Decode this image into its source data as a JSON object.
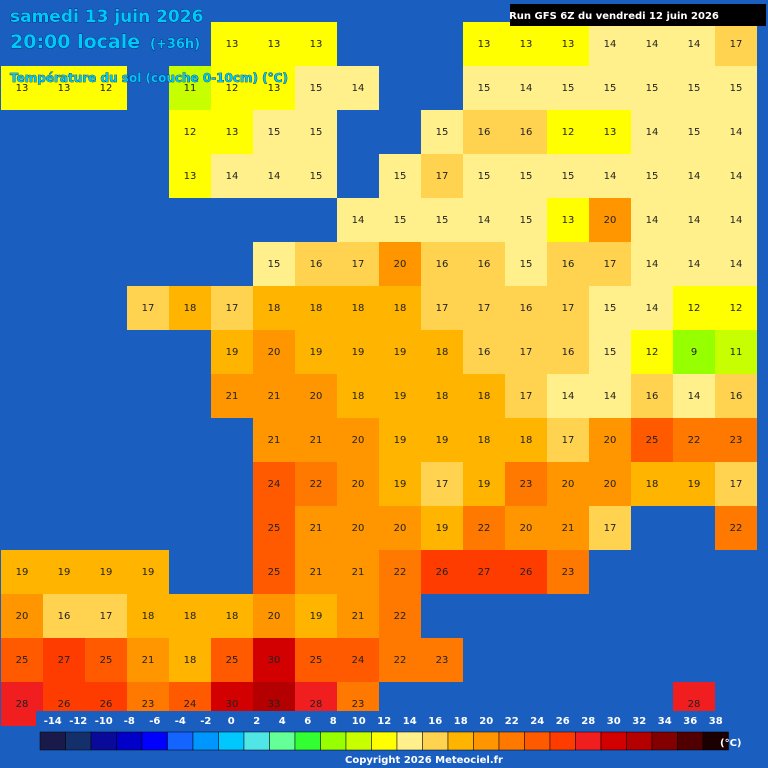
{
  "header": {
    "date": "samedi 13 juin 2026",
    "time": "20:00 locale",
    "lead": "(+36h)",
    "variable": "Température du sol (couche 0-10cm) (°C)",
    "run": "Run GFS 6Z du vendredi 12 juin 2026"
  },
  "grid": {
    "rows": [
      [
        null,
        null,
        null,
        null,
        null,
        13,
        13,
        13,
        null,
        null,
        null,
        13,
        13,
        13,
        14,
        14,
        14,
        17
      ],
      [
        13,
        13,
        12,
        null,
        11,
        12,
        13,
        15,
        14,
        null,
        null,
        15,
        14,
        15,
        15,
        15,
        15,
        15
      ],
      [
        null,
        null,
        null,
        null,
        12,
        13,
        15,
        15,
        null,
        null,
        15,
        16,
        16,
        12,
        13,
        14,
        15,
        14
      ],
      [
        null,
        null,
        null,
        null,
        13,
        14,
        14,
        15,
        null,
        15,
        17,
        15,
        15,
        15,
        14,
        15,
        14,
        14
      ],
      [
        null,
        null,
        null,
        null,
        null,
        null,
        null,
        null,
        14,
        15,
        15,
        14,
        15,
        13,
        20,
        14,
        14,
        14
      ],
      [
        null,
        null,
        null,
        null,
        null,
        null,
        15,
        16,
        17,
        20,
        16,
        16,
        15,
        16,
        17,
        14,
        14,
        14
      ],
      [
        null,
        null,
        null,
        17,
        18,
        17,
        18,
        18,
        18,
        18,
        17,
        17,
        16,
        17,
        15,
        14,
        12,
        12
      ],
      [
        null,
        null,
        null,
        null,
        null,
        19,
        20,
        19,
        19,
        19,
        18,
        16,
        17,
        16,
        15,
        12,
        9,
        11
      ],
      [
        null,
        null,
        null,
        null,
        null,
        21,
        21,
        20,
        18,
        19,
        18,
        18,
        17,
        14,
        14,
        16,
        14,
        16
      ],
      [
        null,
        null,
        null,
        null,
        null,
        null,
        21,
        21,
        20,
        19,
        19,
        18,
        18,
        17,
        20,
        25,
        22,
        23
      ],
      [
        null,
        null,
        null,
        null,
        null,
        null,
        24,
        22,
        20,
        19,
        17,
        19,
        23,
        20,
        20,
        18,
        19,
        17
      ],
      [
        null,
        null,
        null,
        null,
        null,
        null,
        25,
        21,
        20,
        20,
        19,
        22,
        20,
        21,
        17,
        null,
        null,
        22
      ],
      [
        19,
        19,
        19,
        19,
        null,
        null,
        25,
        21,
        21,
        22,
        26,
        27,
        26,
        23,
        null,
        null,
        null,
        null
      ],
      [
        20,
        16,
        17,
        18,
        18,
        18,
        20,
        19,
        21,
        22,
        null,
        null,
        null,
        null,
        null,
        null,
        null,
        null
      ],
      [
        25,
        27,
        25,
        21,
        18,
        25,
        30,
        25,
        24,
        22,
        23,
        null,
        null,
        null,
        null,
        null,
        null,
        null
      ],
      [
        28,
        26,
        26,
        23,
        24,
        30,
        33,
        28,
        23,
        null,
        null,
        null,
        null,
        null,
        null,
        null,
        28,
        null
      ]
    ]
  },
  "legend": {
    "unit": "(°C)",
    "values": [
      -14,
      -12,
      -10,
      -8,
      -6,
      -4,
      -2,
      0,
      2,
      4,
      6,
      8,
      10,
      12,
      14,
      16,
      18,
      20,
      22,
      24,
      26,
      28,
      30,
      32,
      34,
      36,
      38
    ],
    "colors": [
      "#1a1a4a",
      "#14306a",
      "#0a0a9a",
      "#0000c8",
      "#0000ff",
      "#1464ff",
      "#0096ff",
      "#00c8ff",
      "#50e6e6",
      "#64ff96",
      "#32ff32",
      "#96ff00",
      "#c8ff00",
      "#ffff00",
      "#fff08c",
      "#ffd250",
      "#ffb400",
      "#ff9600",
      "#ff7800",
      "#ff5a00",
      "#ff3c00",
      "#f01e1e",
      "#d20000",
      "#b40000",
      "#820000",
      "#500000",
      "#1a0000"
    ]
  },
  "footer": {
    "copyright": "Copyright 2026 Meteociel.fr"
  }
}
